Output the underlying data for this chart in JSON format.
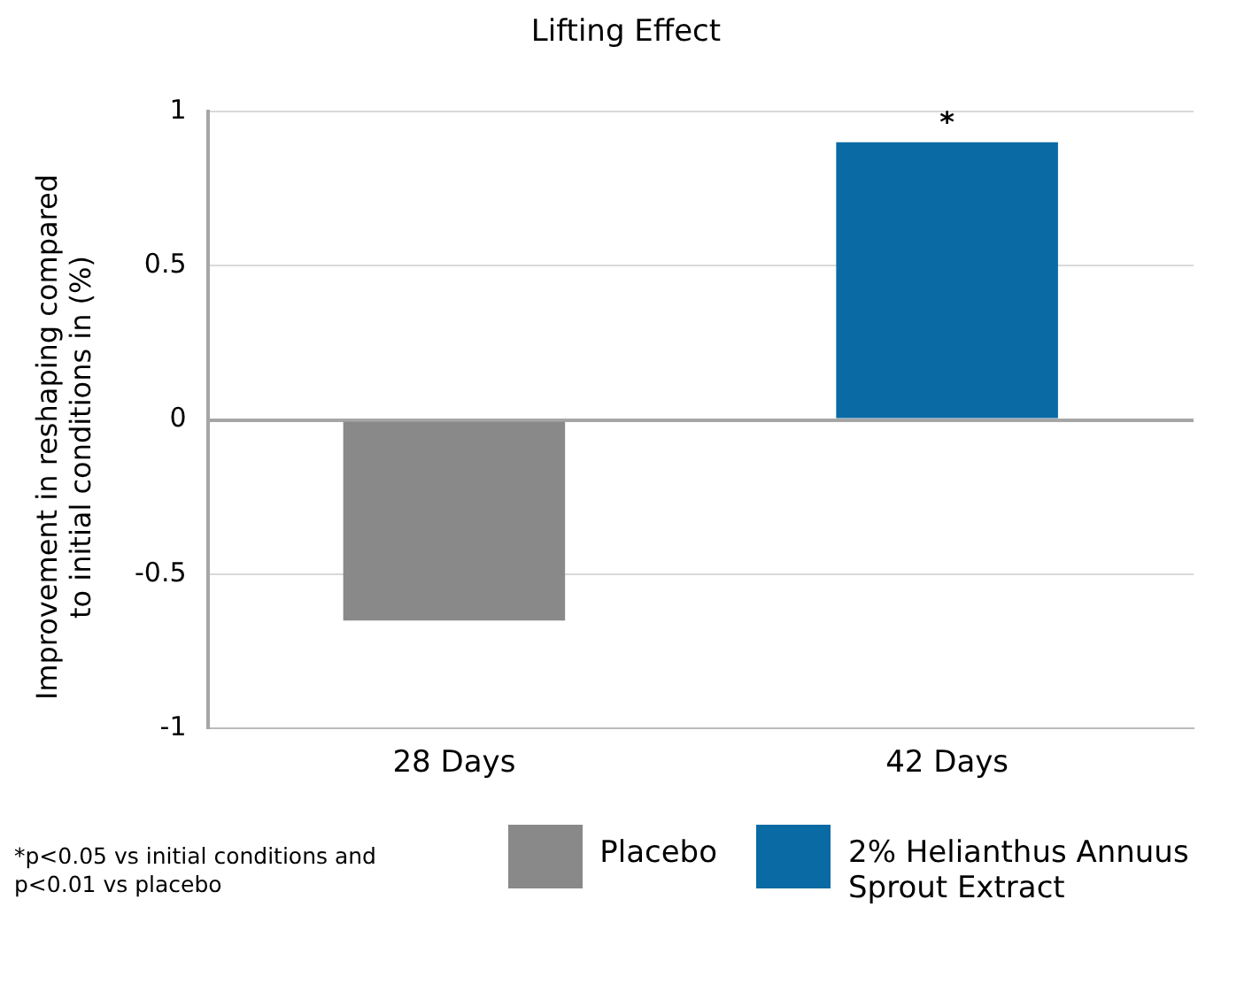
{
  "chart_data": {
    "type": "bar",
    "title": "Lifting Effect",
    "ylabel": "Improvement in reshaping compared to initial conditions in (%)",
    "categories": [
      "28 Days",
      "42 Days"
    ],
    "series": [
      {
        "name": "Placebo",
        "color": "#898989",
        "values": [
          -0.65,
          null
        ]
      },
      {
        "name": "2% Helianthus Annuus Sprout Extract",
        "color": "#0a6aa4",
        "values": [
          null,
          0.9
        ]
      }
    ],
    "ylim": [
      -1,
      1
    ],
    "yticks": [
      -1,
      -0.5,
      0,
      0.5,
      1
    ],
    "grid": "y",
    "legend": "bottom",
    "annotations": [
      {
        "text": "*",
        "x": "42 Days",
        "y": 0.9
      },
      "*p<0.05 vs initial conditions and p<0.01 vs placebo"
    ]
  }
}
